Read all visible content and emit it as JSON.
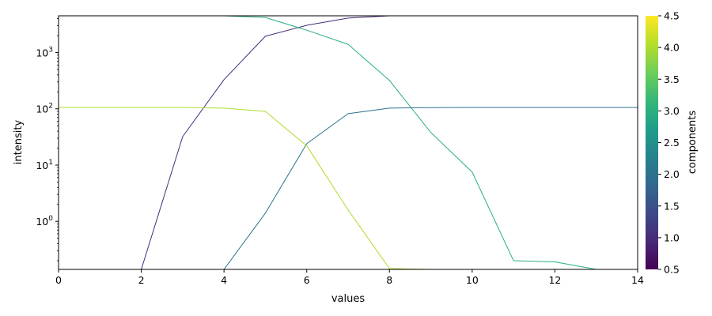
{
  "chart_data": {
    "type": "line",
    "title": "",
    "xlabel": "values",
    "ylabel": "intensity",
    "xlim": [
      0,
      14
    ],
    "ylim": [
      0.14,
      4500
    ],
    "yscale": "log",
    "grid": false,
    "x_ticks": [
      0,
      2,
      4,
      6,
      8,
      10,
      12,
      14
    ],
    "y_ticks": [
      {
        "value": 1,
        "label": "10",
        "exp": "0"
      },
      {
        "value": 10,
        "label": "10",
        "exp": "1"
      },
      {
        "value": 100,
        "label": "10",
        "exp": "2"
      },
      {
        "value": 1000,
        "label": "10",
        "exp": "3"
      }
    ],
    "x": [
      0,
      1,
      2,
      3,
      4,
      5,
      6,
      7,
      8,
      9,
      10,
      11,
      12,
      13,
      14
    ],
    "series": [
      {
        "component": 1,
        "color": "#472c7a",
        "values": [
          0.14,
          0.14,
          0.14,
          32,
          330,
          1950,
          3050,
          4100,
          4500,
          4500,
          4500,
          4500,
          4500,
          4500,
          4500
        ]
      },
      {
        "component": 2,
        "color": "#2c728e",
        "values": [
          0.14,
          0.14,
          0.14,
          0.14,
          0.14,
          1.4,
          24,
          82,
          103,
          105,
          106,
          106,
          106,
          106,
          106
        ]
      },
      {
        "component": 3,
        "color": "#28ae80",
        "values": [
          4500,
          4500,
          4500,
          4500,
          4500,
          4200,
          2500,
          1400,
          320,
          38,
          7.5,
          0.2,
          0.19,
          0.14,
          0.14
        ]
      },
      {
        "component": 4,
        "color": "#addc30",
        "values": [
          106,
          106,
          106,
          106,
          103,
          90,
          22,
          1.6,
          0.145,
          0.14,
          0.14,
          0.14,
          0.14,
          0.14,
          0.14
        ]
      }
    ],
    "colorbar": {
      "label": "components",
      "range": [
        0.5,
        4.5
      ],
      "ticks": [
        "0.5",
        "1.0",
        "1.5",
        "2.0",
        "2.5",
        "3.0",
        "3.5",
        "4.0",
        "4.5"
      ],
      "colormap": [
        "#440154",
        "#482878",
        "#3e4989",
        "#31688e",
        "#26828e",
        "#1f9e89",
        "#35b779",
        "#6ece58",
        "#b5de2b",
        "#fde725"
      ]
    }
  }
}
